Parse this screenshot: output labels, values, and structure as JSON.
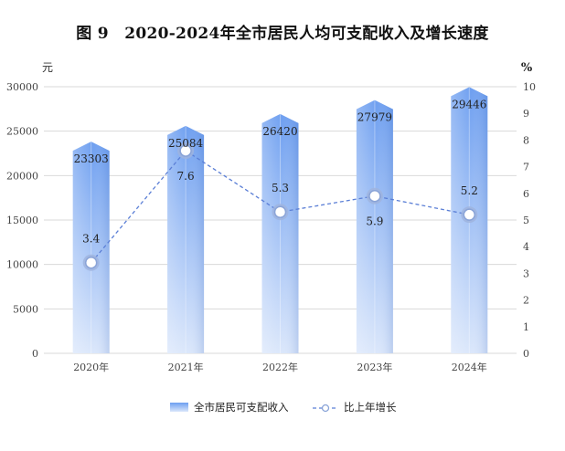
{
  "chart_data": {
    "type": "bar+line",
    "title": "图 9　2020-2024年全市居民人均可支配收入及增长速度",
    "categories": [
      "2020年",
      "2021年",
      "2022年",
      "2023年",
      "2024年"
    ],
    "series": [
      {
        "name": "全市居民可支配收入",
        "kind": "bar",
        "axis": "left",
        "values": [
          23303,
          25084,
          26420,
          27979,
          29446
        ]
      },
      {
        "name": "比上年增长",
        "kind": "line",
        "axis": "right",
        "values": [
          3.4,
          7.6,
          5.3,
          5.9,
          5.2
        ]
      }
    ],
    "y_left": {
      "unit": "元",
      "ylim": [
        0,
        30000
      ],
      "ticks": [
        0,
        5000,
        10000,
        15000,
        20000,
        25000,
        30000
      ]
    },
    "y_right": {
      "unit": "%",
      "ylim": [
        0,
        10
      ],
      "ticks": [
        0,
        1,
        2,
        3,
        4,
        5,
        6,
        7,
        8,
        9,
        10
      ]
    },
    "grid": true,
    "legend": "bottom-center",
    "colors": {
      "bar_top": "#6e9ff0",
      "bar_bottom": "#dbe7fb",
      "line": "#5b7fd6",
      "grid": "#d9d9d9"
    }
  }
}
